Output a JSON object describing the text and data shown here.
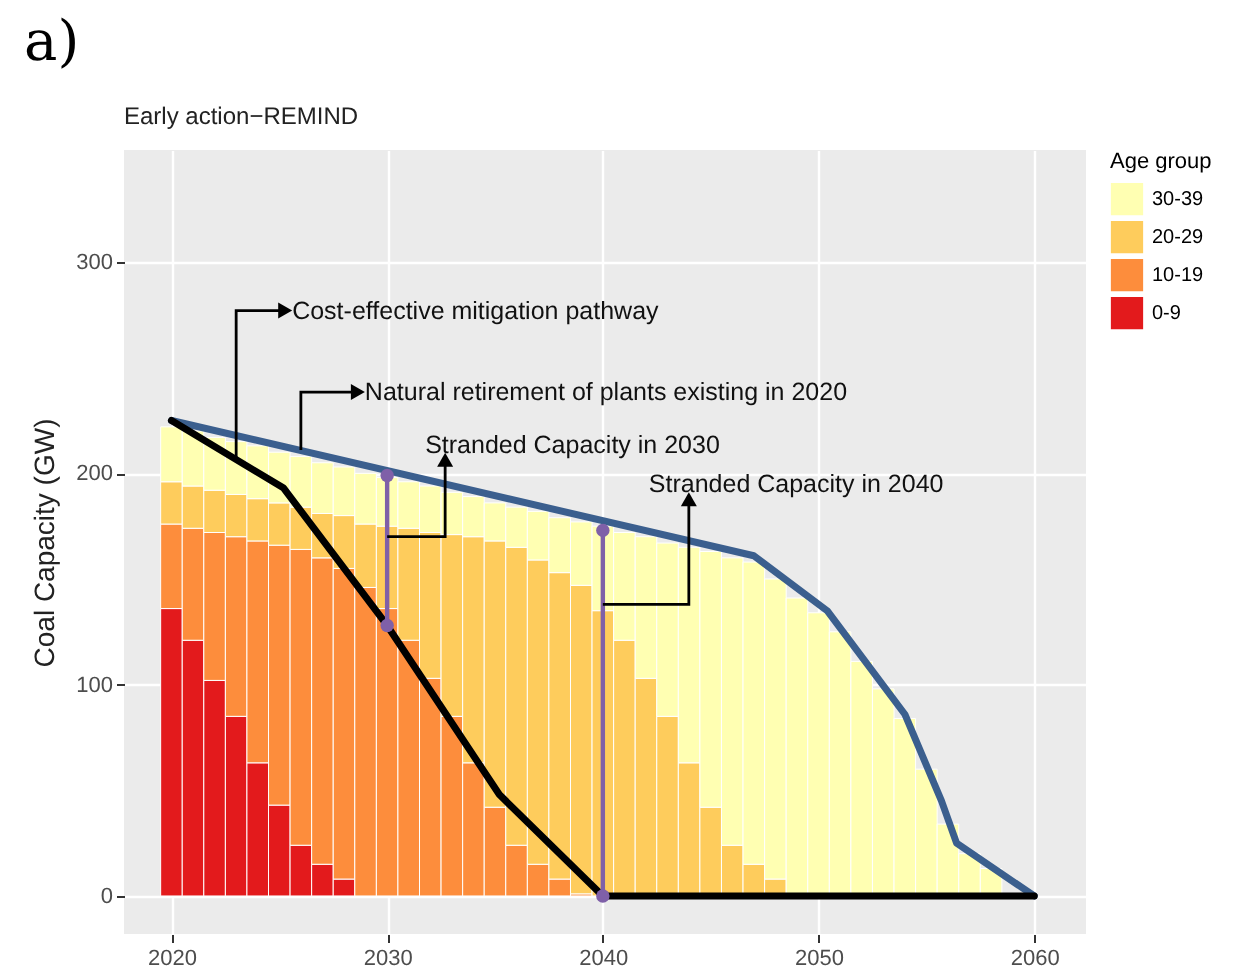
{
  "chart_data": {
    "type": "bar",
    "title": "Early action−REMIND",
    "ylabel": "Coal Capacity (GW)",
    "legend_title": "Age group",
    "legend": "right",
    "stacked": true,
    "grid": true,
    "xlim": [
      2017.8,
      2062.4
    ],
    "xticks": [
      2020,
      2030,
      2040,
      2050,
      2060
    ],
    "ylim": [
      -18,
      353
    ],
    "yticks": [
      0,
      100,
      200,
      300
    ],
    "x": [
      2020,
      2021,
      2022,
      2023,
      2024,
      2025,
      2026,
      2027,
      2028,
      2029,
      2030,
      2031,
      2032,
      2033,
      2034,
      2035,
      2036,
      2037,
      2038,
      2039,
      2040,
      2041,
      2042,
      2043,
      2044,
      2045,
      2046,
      2047,
      2048,
      2049,
      2050,
      2051,
      2052,
      2053,
      2054,
      2055,
      2056,
      2057,
      2058,
      2059
    ],
    "series": [
      {
        "name": "0-9",
        "color": "#e31a1c",
        "values": [
          136,
          121,
          102,
          85,
          63,
          43,
          24,
          15,
          8,
          null,
          0,
          0,
          0,
          0,
          0,
          0,
          0,
          0,
          0,
          0,
          0,
          0,
          0,
          0,
          0,
          0,
          0,
          0,
          0,
          0,
          0,
          0,
          0,
          0,
          0,
          0,
          0,
          0,
          0,
          0
        ]
      },
      {
        "name": "10-19",
        "color": "#fd8d3c",
        "values": [
          40,
          53,
          70,
          85,
          105,
          123,
          140,
          145,
          147,
          146,
          136,
          121,
          103,
          85,
          63,
          42,
          24,
          15,
          8,
          1,
          0,
          0,
          0,
          0,
          0,
          0,
          0,
          0,
          0,
          0,
          0,
          0,
          0,
          0,
          0,
          0,
          0,
          0,
          0,
          0
        ]
      },
      {
        "name": "20-29",
        "color": "#fecc5c",
        "values": [
          20,
          20,
          20,
          20,
          20,
          20,
          20,
          21,
          25,
          30,
          39,
          53,
          69,
          86,
          107,
          126,
          141,
          144,
          145,
          146,
          135,
          121,
          103,
          85,
          63,
          42,
          24,
          15,
          8,
          null,
          0,
          0,
          0,
          0,
          0,
          0,
          0,
          0,
          0,
          0
        ]
      },
      {
        "name": "30-39",
        "color": "#ffffb2",
        "values": [
          26,
          26,
          25,
          25,
          25,
          24,
          24,
          24,
          23,
          24,
          23,
          22,
          22,
          20,
          19,
          18,
          19,
          23,
          26,
          30,
          40,
          51,
          67,
          82,
          102,
          121,
          136,
          143,
          142,
          141,
          134,
          125,
          111,
          98,
          84,
          60,
          34,
          20,
          13,
          null
        ]
      },
      {
        "type": "line",
        "color": "#3b5f8e",
        "x": [
          2020,
          2047,
          2050.4,
          2054,
          2055.7,
          2056.4,
          2060
        ],
        "values": [
          225,
          161,
          135,
          86,
          45,
          25,
          0
        ]
      },
      {
        "type": "line",
        "color": "#000000",
        "x": [
          2020,
          2025.2,
          2030,
          2035.2,
          2040,
          2060
        ],
        "values": [
          225,
          193,
          128,
          48,
          0,
          0
        ]
      },
      {
        "type": "line",
        "color": "#7f60a8",
        "marker": "circle",
        "x": [
          2030,
          2030
        ],
        "values": [
          128,
          199
        ]
      },
      {
        "type": "line",
        "color": "#7f60a8",
        "marker": "circle",
        "x": [
          2040,
          2040
        ],
        "values": [
          0,
          173
        ]
      }
    ],
    "annotations": [
      "a)",
      {
        "text": "Cost-effective mitigation pathway",
        "x": 2023,
        "y": 207
      },
      {
        "text": "Natural retirement of plants existing in 2020",
        "x": 2026,
        "y": 211
      },
      {
        "text": "Stranded Capacity in 2030",
        "x": 2030,
        "y": 170
      },
      {
        "text": "Stranded Capacity in 2040",
        "x": 2040,
        "y": 138
      }
    ]
  }
}
